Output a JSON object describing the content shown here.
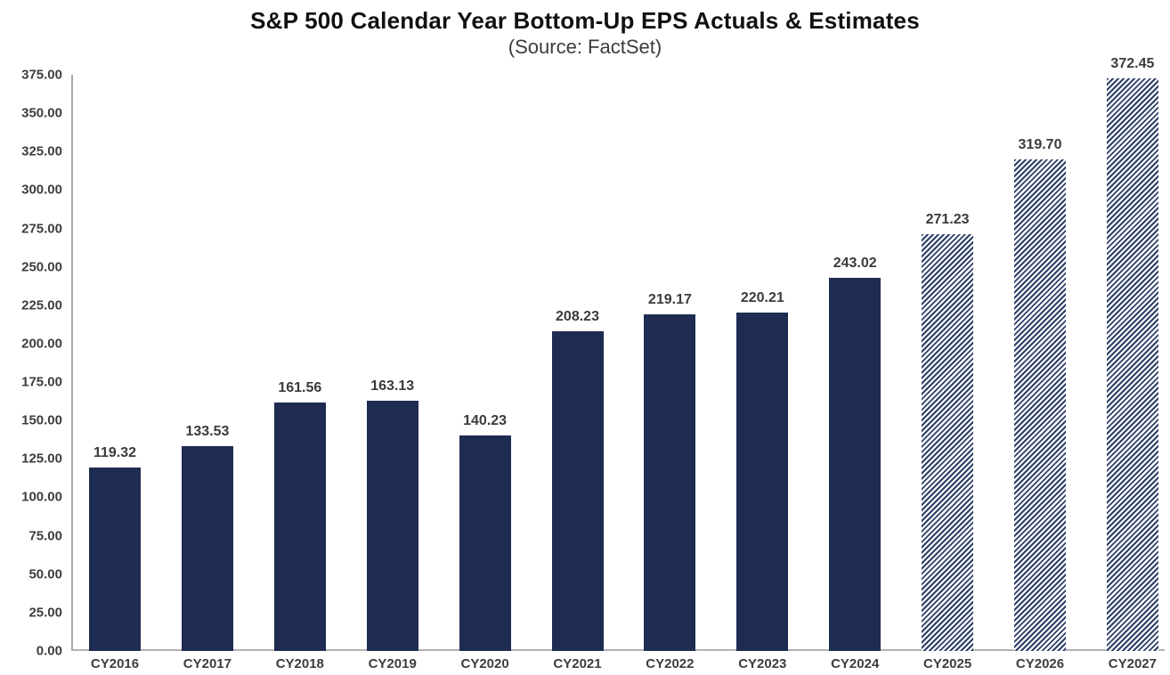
{
  "header": {
    "title": "S&P 500 Calendar Year Bottom-Up EPS Actuals & Estimates",
    "subtitle": "(Source: FactSet)"
  },
  "chart_data": {
    "type": "bar",
    "title": "S&P 500 Calendar Year Bottom-Up EPS Actuals & Estimates",
    "subtitle": "(Source: FactSet)",
    "categories": [
      "CY2016",
      "CY2017",
      "CY2018",
      "CY2019",
      "CY2020",
      "CY2021",
      "CY2022",
      "CY2023",
      "CY2024",
      "CY2025",
      "CY2026",
      "CY2027"
    ],
    "values": [
      119.32,
      133.53,
      161.56,
      163.13,
      140.23,
      208.23,
      219.17,
      220.21,
      243.02,
      271.23,
      319.7,
      372.45
    ],
    "value_labels": [
      "119.32",
      "133.53",
      "161.56",
      "163.13",
      "140.23",
      "208.23",
      "219.17",
      "220.21",
      "243.02",
      "271.23",
      "319.70",
      "372.45"
    ],
    "bar_styles": [
      "solid",
      "solid",
      "solid",
      "solid",
      "solid",
      "solid",
      "solid",
      "solid",
      "solid",
      "hatched",
      "hatched",
      "hatched"
    ],
    "series_meaning": {
      "solid": "Actuals",
      "hatched": "Estimates"
    },
    "ylim": [
      0,
      375
    ],
    "ytick_step": 25,
    "ytick_labels": [
      "0.00",
      "25.00",
      "50.00",
      "75.00",
      "100.00",
      "125.00",
      "150.00",
      "175.00",
      "200.00",
      "225.00",
      "250.00",
      "275.00",
      "300.00",
      "325.00",
      "350.00",
      "375.00"
    ],
    "grid": false,
    "legend_position": "none",
    "colors": {
      "bar_solid": "#1f2c52",
      "bar_hatch": "#2e3f69",
      "axis_line": "#a9a9a9",
      "tick_label": "#3d3d3d",
      "value_label": "#3b3b3b",
      "title": "#111111",
      "subtitle": "#3c3c3c"
    }
  }
}
